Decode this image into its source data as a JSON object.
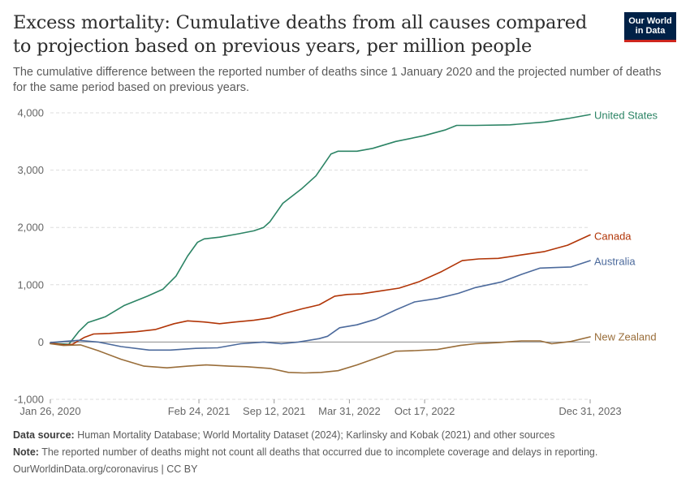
{
  "header": {
    "title": "Excess mortality: Cumulative deaths from all causes compared to projection based on previous years, per million people",
    "subtitle": "The cumulative difference between the reported number of deaths since 1 January 2020 and the projected number of deaths for the same period based on previous years.",
    "logo_line1": "Our World",
    "logo_line2": "in Data"
  },
  "footer": {
    "source_label": "Data source:",
    "source_text": "Human Mortality Database; World Mortality Dataset (2024); Karlinsky and Kobak (2021) and other sources",
    "note_label": "Note:",
    "note_text": "The reported number of deaths might not count all deaths that occurred due to incomplete coverage and delays in reporting.",
    "url_text": "OurWorldinData.org/coronavirus",
    "license_text": "CC BY",
    "separator": "|"
  },
  "colors": {
    "United States": "#2c8465",
    "Canada": "#b13507",
    "Australia": "#4c6a9c",
    "New Zealand": "#996d39",
    "grid": "#dddddd",
    "zero_line": "#8c8c8c",
    "axis_text": "#666666"
  },
  "chart_data": {
    "type": "line",
    "title": "Excess mortality: Cumulative deaths from all causes compared to projection based on previous years, per million people",
    "ylim": [
      -1000,
      4000
    ],
    "yticks": [
      -1000,
      0,
      1000,
      2000,
      3000,
      4000
    ],
    "ytick_labels": [
      "-1,000",
      "0",
      "1,000",
      "2,000",
      "3,000",
      "4,000"
    ],
    "xlim": [
      "2020-01-26",
      "2023-12-31"
    ],
    "xticks": [
      "2020-01-26",
      "2021-02-24",
      "2021-09-12",
      "2022-03-31",
      "2022-10-17",
      "2023-12-31"
    ],
    "xtick_labels": [
      "Jan 26, 2020",
      "Feb 24, 2021",
      "Sep 12, 2021",
      "Mar 31, 2022",
      "Oct 17, 2022",
      "Dec 31, 2023"
    ],
    "grid": true,
    "legend": "end-of-line labels",
    "series": [
      {
        "name": "United States",
        "points": [
          [
            "2020-01-26",
            -20
          ],
          [
            "2020-03-15",
            -40
          ],
          [
            "2020-04-10",
            180
          ],
          [
            "2020-05-05",
            340
          ],
          [
            "2020-06-20",
            440
          ],
          [
            "2020-08-10",
            640
          ],
          [
            "2020-10-10",
            800
          ],
          [
            "2020-11-20",
            920
          ],
          [
            "2020-12-25",
            1150
          ],
          [
            "2021-01-25",
            1500
          ],
          [
            "2021-02-20",
            1740
          ],
          [
            "2021-03-10",
            1800
          ],
          [
            "2021-04-20",
            1830
          ],
          [
            "2021-06-10",
            1890
          ],
          [
            "2021-07-20",
            1940
          ],
          [
            "2021-08-15",
            2000
          ],
          [
            "2021-09-01",
            2100
          ],
          [
            "2021-10-05",
            2420
          ],
          [
            "2021-11-25",
            2680
          ],
          [
            "2022-01-01",
            2900
          ],
          [
            "2022-02-10",
            3280
          ],
          [
            "2022-03-01",
            3330
          ],
          [
            "2022-04-20",
            3330
          ],
          [
            "2022-06-01",
            3380
          ],
          [
            "2022-08-01",
            3500
          ],
          [
            "2022-10-15",
            3600
          ],
          [
            "2022-12-10",
            3700
          ],
          [
            "2023-01-10",
            3780
          ],
          [
            "2023-03-01",
            3780
          ],
          [
            "2023-06-01",
            3790
          ],
          [
            "2023-09-01",
            3840
          ],
          [
            "2023-11-01",
            3900
          ],
          [
            "2023-12-31",
            3970
          ]
        ]
      },
      {
        "name": "Canada",
        "points": [
          [
            "2020-01-26",
            -20
          ],
          [
            "2020-03-05",
            -50
          ],
          [
            "2020-03-25",
            -40
          ],
          [
            "2020-04-25",
            80
          ],
          [
            "2020-05-20",
            140
          ],
          [
            "2020-07-01",
            150
          ],
          [
            "2020-09-10",
            180
          ],
          [
            "2020-11-01",
            220
          ],
          [
            "2020-12-20",
            320
          ],
          [
            "2021-01-25",
            370
          ],
          [
            "2021-03-10",
            350
          ],
          [
            "2021-04-20",
            320
          ],
          [
            "2021-06-01",
            350
          ],
          [
            "2021-07-20",
            380
          ],
          [
            "2021-09-01",
            420
          ],
          [
            "2021-10-10",
            500
          ],
          [
            "2021-11-25",
            580
          ],
          [
            "2022-01-10",
            650
          ],
          [
            "2022-02-20",
            800
          ],
          [
            "2022-03-25",
            830
          ],
          [
            "2022-05-01",
            840
          ],
          [
            "2022-06-20",
            890
          ],
          [
            "2022-08-10",
            940
          ],
          [
            "2022-10-01",
            1050
          ],
          [
            "2022-12-01",
            1230
          ],
          [
            "2023-01-25",
            1420
          ],
          [
            "2023-03-10",
            1450
          ],
          [
            "2023-05-01",
            1460
          ],
          [
            "2023-07-01",
            1520
          ],
          [
            "2023-09-01",
            1580
          ],
          [
            "2023-11-01",
            1690
          ],
          [
            "2023-12-31",
            1870
          ]
        ]
      },
      {
        "name": "Australia",
        "points": [
          [
            "2020-01-26",
            -10
          ],
          [
            "2020-03-01",
            10
          ],
          [
            "2020-04-10",
            30
          ],
          [
            "2020-06-01",
            0
          ],
          [
            "2020-08-01",
            -80
          ],
          [
            "2020-10-15",
            -140
          ],
          [
            "2020-12-10",
            -140
          ],
          [
            "2021-02-15",
            -110
          ],
          [
            "2021-04-15",
            -100
          ],
          [
            "2021-06-15",
            -30
          ],
          [
            "2021-08-15",
            0
          ],
          [
            "2021-10-01",
            -30
          ],
          [
            "2021-11-15",
            0
          ],
          [
            "2022-01-10",
            60
          ],
          [
            "2022-02-01",
            100
          ],
          [
            "2022-03-05",
            250
          ],
          [
            "2022-04-20",
            300
          ],
          [
            "2022-06-10",
            400
          ],
          [
            "2022-08-01",
            560
          ],
          [
            "2022-09-20",
            700
          ],
          [
            "2022-11-20",
            760
          ],
          [
            "2023-01-15",
            850
          ],
          [
            "2023-03-01",
            950
          ],
          [
            "2023-05-10",
            1050
          ],
          [
            "2023-07-01",
            1180
          ],
          [
            "2023-08-20",
            1290
          ],
          [
            "2023-10-01",
            1300
          ],
          [
            "2023-11-10",
            1310
          ],
          [
            "2023-12-31",
            1420
          ]
        ]
      },
      {
        "name": "New Zealand",
        "points": [
          [
            "2020-01-26",
            -30
          ],
          [
            "2020-03-01",
            -60
          ],
          [
            "2020-04-15",
            -50
          ],
          [
            "2020-06-01",
            -150
          ],
          [
            "2020-08-01",
            -300
          ],
          [
            "2020-10-01",
            -420
          ],
          [
            "2020-12-01",
            -450
          ],
          [
            "2021-01-25",
            -420
          ],
          [
            "2021-03-15",
            -400
          ],
          [
            "2021-05-15",
            -420
          ],
          [
            "2021-07-01",
            -430
          ],
          [
            "2021-09-01",
            -460
          ],
          [
            "2021-10-20",
            -530
          ],
          [
            "2021-12-01",
            -540
          ],
          [
            "2022-01-15",
            -530
          ],
          [
            "2022-03-01",
            -500
          ],
          [
            "2022-04-20",
            -400
          ],
          [
            "2022-06-10",
            -280
          ],
          [
            "2022-08-01",
            -160
          ],
          [
            "2022-09-20",
            -150
          ],
          [
            "2022-11-20",
            -130
          ],
          [
            "2023-01-20",
            -60
          ],
          [
            "2023-03-01",
            -30
          ],
          [
            "2023-05-01",
            -10
          ],
          [
            "2023-07-01",
            20
          ],
          [
            "2023-08-20",
            20
          ],
          [
            "2023-09-20",
            -30
          ],
          [
            "2023-11-10",
            10
          ],
          [
            "2023-12-31",
            90
          ]
        ]
      }
    ]
  }
}
